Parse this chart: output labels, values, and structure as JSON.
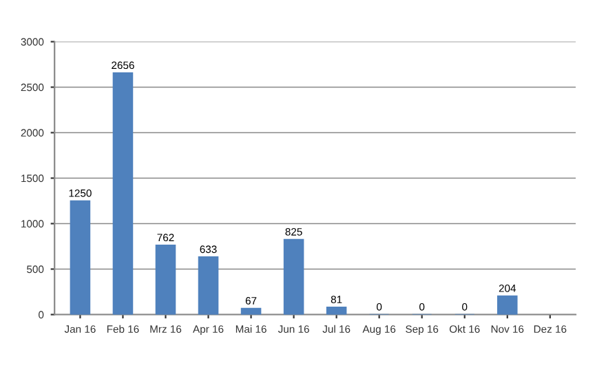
{
  "chart_data": {
    "type": "bar",
    "categories": [
      "Jan 16",
      "Feb 16",
      "Mrz 16",
      "Apr 16",
      "Mai 16",
      "Jun 16",
      "Jul 16",
      "Aug 16",
      "Sep 16",
      "Okt 16",
      "Nov 16",
      "Dez 16"
    ],
    "values": [
      1250,
      2656,
      762,
      633,
      67,
      825,
      81,
      0,
      0,
      0,
      204,
      null
    ],
    "color": "#4f81bd",
    "ylim": [
      0,
      3000
    ],
    "yticks": [
      0,
      500,
      1000,
      1500,
      2000,
      2500,
      3000
    ],
    "grid": "y",
    "data_labels": true
  }
}
